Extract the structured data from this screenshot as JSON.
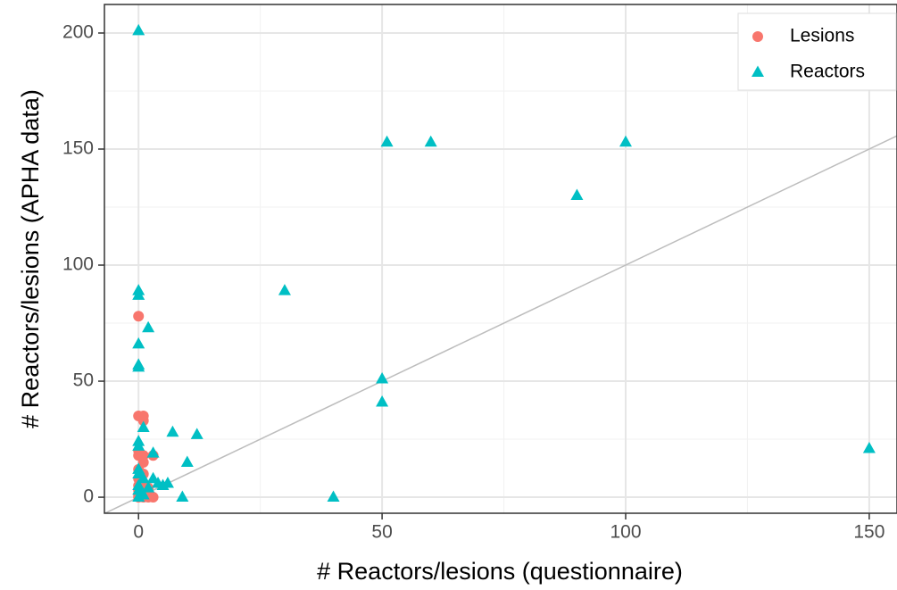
{
  "chart_data": {
    "type": "scatter",
    "xlabel": "# Reactors/lesions (questionnaire)",
    "ylabel": "# Reactors/lesions (APHA data)",
    "xlim": [
      -7,
      155.7
    ],
    "ylim": [
      -6.9,
      212.3
    ],
    "xticks": [
      0,
      50,
      100,
      150
    ],
    "yticks": [
      0,
      50,
      100,
      150,
      200
    ],
    "xminor": [
      25,
      75,
      125
    ],
    "yminor": [
      25,
      75,
      125,
      175
    ],
    "grid": true,
    "legend": "top-right",
    "reference_line": {
      "slope": 1,
      "intercept": 0,
      "color": "#bdbdbd"
    },
    "series": [
      {
        "name": "Lesions",
        "color": "#F8766D",
        "marker": "circle",
        "x": [
          0,
          0,
          1,
          1,
          0,
          0,
          1,
          3,
          1,
          0,
          1,
          0,
          1,
          0,
          2,
          0,
          1,
          2,
          0,
          1,
          3,
          2,
          0
        ],
        "values": [
          78,
          35,
          35,
          33,
          20,
          18,
          18,
          18,
          15,
          12,
          10,
          8,
          6,
          5,
          4,
          3,
          2,
          1,
          0,
          0,
          0,
          0,
          1
        ]
      },
      {
        "name": "Reactors",
        "color": "#00BFC4",
        "marker": "triangle",
        "x": [
          0,
          51,
          60,
          100,
          90,
          30,
          0,
          0,
          2,
          0,
          0,
          0,
          50,
          50,
          150,
          7,
          12,
          10,
          40,
          9,
          0,
          0,
          1,
          3,
          0,
          0,
          1,
          3,
          4,
          5,
          6,
          2,
          0,
          0,
          1,
          0
        ],
        "values": [
          201,
          153,
          153,
          153,
          130,
          89,
          89,
          87,
          73,
          66,
          57,
          56,
          51,
          41,
          21,
          28,
          27,
          15,
          0,
          0,
          24,
          22,
          30,
          19,
          12,
          10,
          8,
          8,
          6,
          5,
          6,
          4,
          5,
          3,
          1,
          0
        ]
      }
    ]
  }
}
